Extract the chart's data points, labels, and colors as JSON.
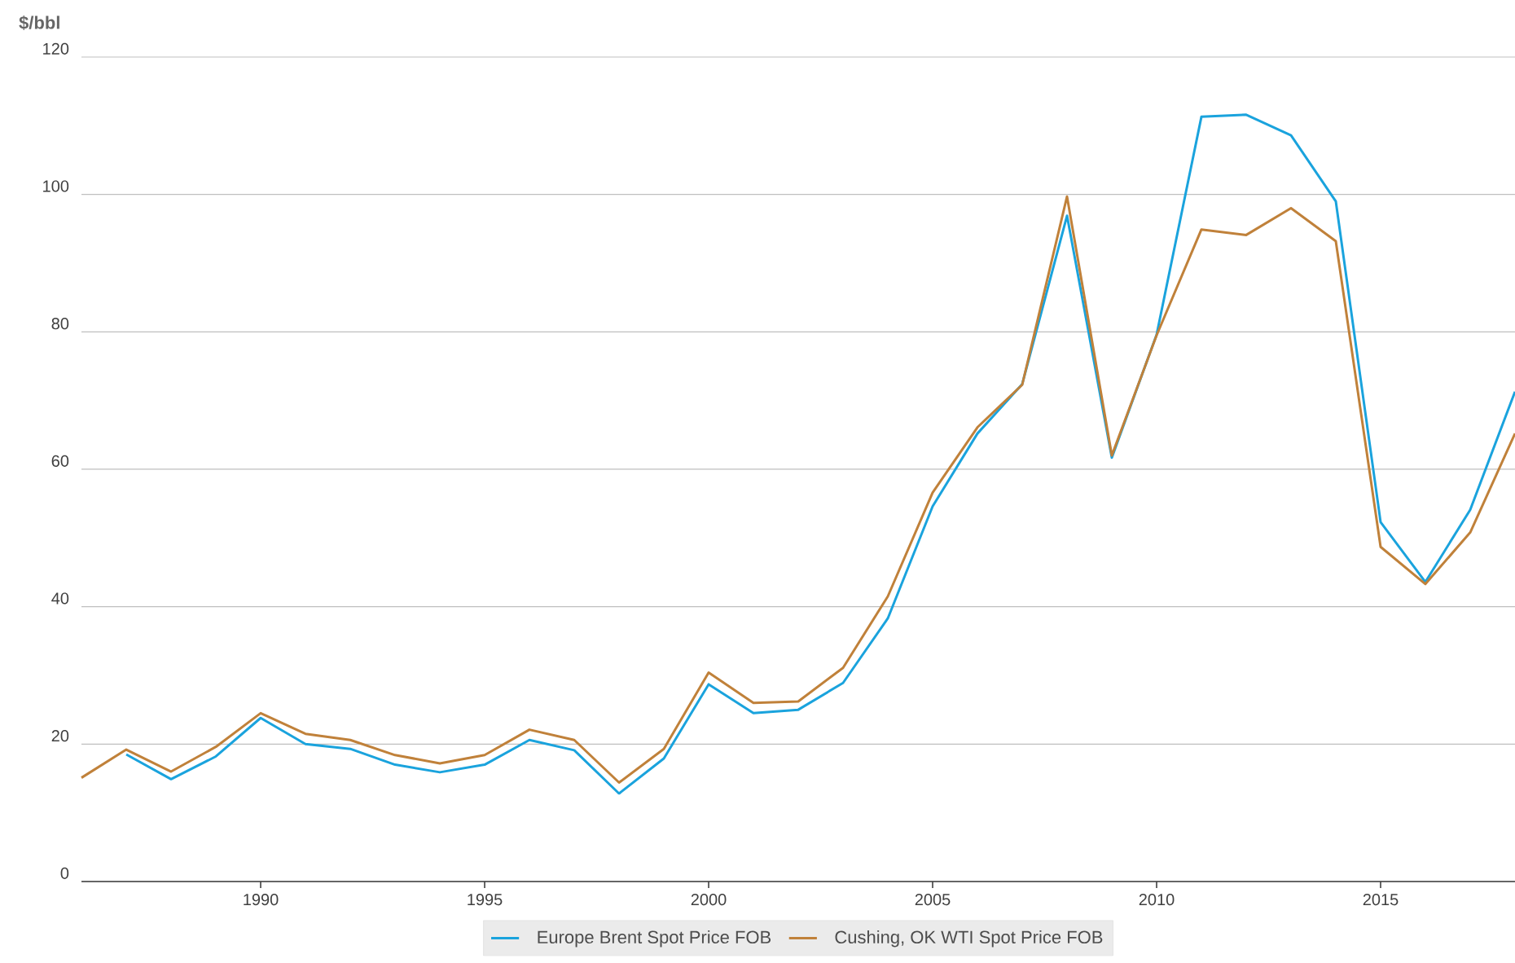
{
  "chart_data": {
    "type": "line",
    "ylabel": "$/bbl",
    "x": [
      1986,
      1987,
      1988,
      1989,
      1990,
      1991,
      1992,
      1993,
      1994,
      1995,
      1996,
      1997,
      1998,
      1999,
      2000,
      2001,
      2002,
      2003,
      2004,
      2005,
      2006,
      2007,
      2008,
      2009,
      2010,
      2011,
      2012,
      2013,
      2014,
      2015,
      2016,
      2017,
      2018
    ],
    "series": [
      {
        "name": "Europe Brent Spot Price FOB",
        "color": "#1aa3dd",
        "values": [
          null,
          18.5,
          14.9,
          18.2,
          23.8,
          20.0,
          19.3,
          17.0,
          15.9,
          17.0,
          20.6,
          19.1,
          12.8,
          17.9,
          28.7,
          24.5,
          25.0,
          28.9,
          38.3,
          54.6,
          65.2,
          72.4,
          96.9,
          61.7,
          79.6,
          111.3,
          111.6,
          108.6,
          99.0,
          52.3,
          43.6,
          54.1,
          71.3
        ]
      },
      {
        "name": "Cushing, OK WTI Spot Price FOB",
        "color": "#c0813a",
        "values": [
          15.1,
          19.2,
          16.0,
          19.6,
          24.5,
          21.5,
          20.6,
          18.4,
          17.2,
          18.4,
          22.1,
          20.6,
          14.4,
          19.3,
          30.4,
          26.0,
          26.2,
          31.1,
          41.5,
          56.6,
          66.1,
          72.3,
          99.7,
          62.0,
          79.5,
          94.9,
          94.1,
          98.0,
          93.2,
          48.7,
          43.3,
          50.8,
          65.2
        ]
      }
    ],
    "xlim": [
      1986,
      2018
    ],
    "xticks": [
      1990,
      1995,
      2000,
      2005,
      2010,
      2015
    ],
    "ylim": [
      0,
      120
    ],
    "yticks": [
      0,
      20,
      40,
      60,
      80,
      100,
      120
    ],
    "grid": "y",
    "legend": "bottom",
    "marker": "none",
    "line_style": "solid"
  }
}
